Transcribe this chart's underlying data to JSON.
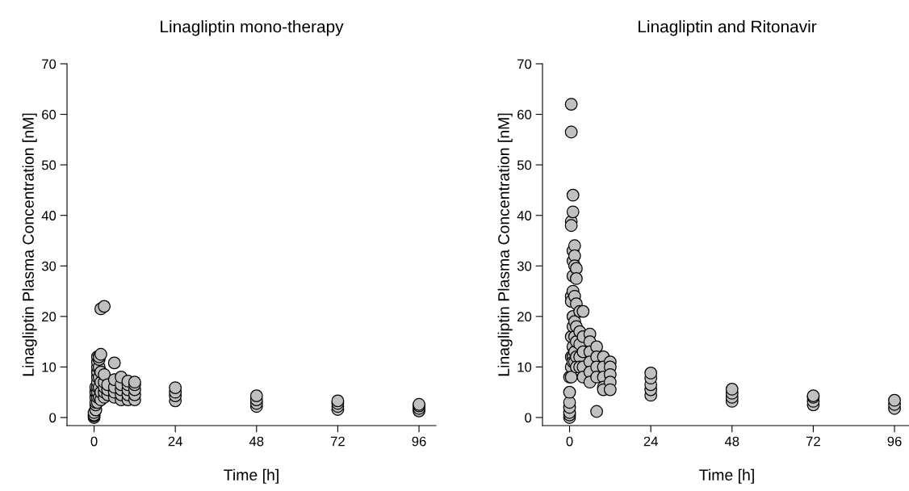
{
  "chart_data": [
    {
      "type": "scatter",
      "title": "Linagliptin mono-therapy",
      "xlabel": "Time [h]",
      "ylabel": "Linagliptin Plasma Concentration [nM]",
      "xlim": [
        -8,
        101
      ],
      "ylim": [
        -1.6,
        70
      ],
      "xticks": [
        0,
        24,
        48,
        72,
        96
      ],
      "yticks": [
        0,
        10,
        20,
        30,
        40,
        50,
        60,
        70
      ],
      "marker": "circle",
      "grid": false,
      "legend": false,
      "series": [
        {
          "color": "#c0c0c0",
          "x": [
            0,
            0,
            0,
            0,
            0.5,
            0.5,
            0.5,
            0.5,
            0.5,
            0.5,
            1,
            1,
            1,
            1,
            1,
            1,
            1,
            1,
            1,
            1,
            1.5,
            1.5,
            1.5,
            1.5,
            1.5,
            1.5,
            2,
            2,
            2,
            2,
            2,
            2,
            3,
            3,
            3,
            3,
            3,
            3,
            4,
            4,
            4,
            6,
            6,
            6,
            6,
            6,
            8,
            8,
            8,
            8,
            8,
            10,
            10,
            10,
            10,
            10,
            12,
            12,
            12,
            12,
            12,
            24,
            24,
            24,
            24,
            48,
            48,
            48,
            48,
            72,
            72,
            72,
            72,
            96,
            96,
            96,
            96
          ],
          "values": [
            0,
            0.3,
            0.5,
            1,
            1.5,
            2.5,
            3,
            4,
            5,
            6,
            3,
            4,
            5,
            6,
            7,
            8,
            9,
            10,
            11,
            12,
            4,
            6,
            8,
            10,
            11.5,
            12,
            21.5,
            3.5,
            5,
            7,
            9,
            12.5,
            22,
            4,
            5,
            6,
            7,
            8.5,
            4.5,
            5.5,
            6.5,
            4,
            5,
            6,
            7.5,
            10.8,
            3.5,
            4.5,
            5.5,
            6.5,
            8,
            3.5,
            4.5,
            5.5,
            6.5,
            7.2,
            3.5,
            4.5,
            5.5,
            6.5,
            7,
            3.3,
            4.3,
            5,
            5.9,
            2.2,
            2.8,
            3.5,
            4.3,
            1.6,
            2.2,
            2.8,
            3.3,
            1.3,
            1.8,
            2.3,
            2.6
          ]
        }
      ]
    },
    {
      "type": "scatter",
      "title": "Linagliptin and Ritonavir",
      "xlabel": "Time [h]",
      "ylabel": "Linagliptin Plasma Concentration [nM]",
      "xlim": [
        -8,
        101
      ],
      "ylim": [
        -1.6,
        70
      ],
      "xticks": [
        0,
        24,
        48,
        72,
        96
      ],
      "yticks": [
        0,
        10,
        20,
        30,
        40,
        50,
        60,
        70
      ],
      "marker": "circle",
      "grid": false,
      "legend": false,
      "series": [
        {
          "color": "#c0c0c0",
          "x": [
            0,
            0,
            0,
            0,
            0,
            0,
            0,
            0.5,
            0.5,
            0.5,
            0.5,
            0.5,
            0.5,
            0.5,
            0.5,
            0.5,
            0.5,
            1,
            1,
            1,
            1,
            1,
            1,
            1,
            1,
            1,
            1,
            1,
            1.5,
            1.5,
            1.5,
            1.5,
            1.5,
            1.5,
            1.5,
            1.5,
            2,
            2,
            2,
            2,
            2,
            2,
            2,
            3,
            3,
            3,
            3,
            3,
            4,
            4,
            4,
            4,
            4,
            6,
            6,
            6,
            6,
            6,
            6,
            8,
            8,
            8,
            8,
            8,
            10,
            10,
            10,
            10,
            10,
            12,
            12,
            12,
            12,
            12,
            24,
            24,
            24,
            24,
            24,
            48,
            48,
            48,
            48,
            72,
            72,
            72,
            72,
            96,
            96,
            96
          ],
          "values": [
            0,
            0.5,
            1,
            2,
            3,
            5,
            8,
            62,
            56.5,
            38.8,
            38,
            24,
            23,
            16,
            12,
            10,
            8,
            44,
            40.7,
            33,
            31,
            28,
            25,
            20,
            18,
            14,
            12,
            11,
            34,
            32,
            30,
            24,
            19,
            16,
            13,
            11,
            29.5,
            27.5,
            22.5,
            18,
            15,
            12,
            10,
            21,
            17,
            14.5,
            12,
            10,
            21,
            16,
            13,
            10,
            8,
            16.5,
            15,
            13,
            11,
            9,
            7,
            14,
            12,
            10,
            8,
            1.2,
            12,
            10,
            8,
            6,
            5.5,
            11,
            10,
            8.5,
            7,
            5.5,
            4.4,
            5.5,
            6.5,
            7.8,
            8.8,
            3.2,
            4,
            4.8,
            5.6,
            2.5,
            3.2,
            4,
            4.3,
            1.8,
            2.6,
            3.4
          ]
        }
      ]
    }
  ]
}
